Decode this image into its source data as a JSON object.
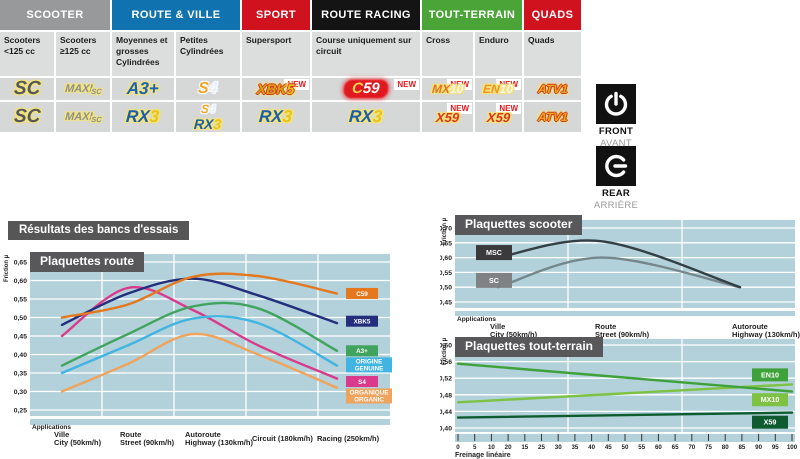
{
  "table": {
    "new_label": "NEW",
    "groups": [
      {
        "label": "SCOOTER",
        "color": "#98999b",
        "span": 2
      },
      {
        "label": "ROUTE & VILLE",
        "color": "#1172b0",
        "span": 2
      },
      {
        "label": "SPORT",
        "color": "#d0121f",
        "span": 1
      },
      {
        "label": "ROUTE RACING",
        "color": "#141414",
        "span": 1
      },
      {
        "label": "TOUT-TERRAIN",
        "color": "#4aa437",
        "span": 2
      },
      {
        "label": "QUADS",
        "color": "#d0121f",
        "span": 1
      }
    ],
    "columns": [
      "Scooters <125 cc",
      "Scooters ≥125 cc",
      "Moyennes et grosses Cylindrées",
      "Petites Cylindrées",
      "Supersport",
      "Course uniquement sur circuit",
      "Cross",
      "Enduro",
      "Quads"
    ],
    "rows": {
      "front": {
        "side_label": "FRONT",
        "side_sub": "AVANT",
        "cells": [
          {
            "badges": [
              {
                "style": "sc",
                "parts": [
                  [
                    "SC",
                    "#55585c"
                  ]
                ]
              }
            ]
          },
          {
            "badges": [
              {
                "style": "maxisc",
                "parts": [
                  [
                    "MAXI",
                    "#8d9092"
                  ],
                  [
                    "SC",
                    "#8d9092"
                  ]
                ]
              }
            ]
          },
          {
            "badges": [
              {
                "style": "a3",
                "parts": [
                  [
                    "A3+",
                    "#1b62b5"
                  ]
                ]
              }
            ]
          },
          {
            "badges": [
              {
                "style": "s4",
                "parts": [
                  [
                    "S",
                    "#f1a51f"
                  ],
                  [
                    "4",
                    "#e8f0f8"
                  ]
                ]
              }
            ]
          },
          {
            "new": true,
            "badges": [
              {
                "style": "xbk5",
                "parts": [
                  [
                    "XBK",
                    "#dd9f17"
                  ],
                  [
                    "5",
                    "#f0c51f"
                  ]
                ]
              }
            ]
          },
          {
            "new": true,
            "badges": [
              {
                "style": "c59",
                "parts": [
                  [
                    "C",
                    "#f6d34c"
                  ],
                  [
                    "59",
                    "#ffffff"
                  ]
                ]
              }
            ]
          },
          {
            "new": true,
            "badges": [
              {
                "style": "mx10",
                "parts": [
                  [
                    "MX",
                    "#e2711d"
                  ],
                  [
                    "10",
                    "#f6f6f6"
                  ]
                ]
              }
            ]
          },
          {
            "new": true,
            "badges": [
              {
                "style": "en10",
                "parts": [
                  [
                    "EN",
                    "#ef9223"
                  ],
                  [
                    "10",
                    "#f6f6f6"
                  ]
                ]
              }
            ]
          },
          {
            "badges": [
              {
                "style": "atv1",
                "parts": [
                  [
                    "ATV1",
                    "#f0a51e"
                  ]
                ]
              }
            ]
          }
        ]
      },
      "rear": {
        "side_label": "REAR",
        "side_sub": "ARRIÈRE",
        "cells": [
          {
            "badges": [
              {
                "style": "sc",
                "parts": [
                  [
                    "SC",
                    "#55585c"
                  ]
                ]
              }
            ]
          },
          {
            "badges": [
              {
                "style": "maxisc",
                "parts": [
                  [
                    "MAXI",
                    "#8d9092"
                  ],
                  [
                    "SC",
                    "#8d9092"
                  ]
                ]
              }
            ]
          },
          {
            "badges": [
              {
                "style": "rx3",
                "parts": [
                  [
                    "RX",
                    "#1a5dab"
                  ],
                  [
                    "3",
                    "#e6c31d"
                  ]
                ]
              }
            ]
          },
          {
            "badges": [
              {
                "style": "s4",
                "small": true,
                "parts": [
                  [
                    "S",
                    "#f1a51f"
                  ],
                  [
                    "4",
                    "#e8f0f8"
                  ]
                ]
              },
              {
                "style": "rx3",
                "small": true,
                "parts": [
                  [
                    "RX",
                    "#1a5dab"
                  ],
                  [
                    "3",
                    "#e6c31d"
                  ]
                ]
              }
            ]
          },
          {
            "badges": [
              {
                "style": "rx3",
                "parts": [
                  [
                    "RX",
                    "#1a5dab"
                  ],
                  [
                    "3",
                    "#e6c31d"
                  ]
                ]
              }
            ]
          },
          {
            "badges": [
              {
                "style": "rx3",
                "parts": [
                  [
                    "RX",
                    "#1a5dab"
                  ],
                  [
                    "3",
                    "#e6c31d"
                  ]
                ]
              }
            ]
          },
          {
            "new": true,
            "badges": [
              {
                "style": "x59",
                "parts": [
                  [
                    "X59",
                    "#dc3420"
                  ]
                ]
              }
            ]
          },
          {
            "new": true,
            "badges": [
              {
                "style": "x59",
                "parts": [
                  [
                    "X59",
                    "#dc3420"
                  ]
                ]
              }
            ]
          },
          {
            "badges": [
              {
                "style": "atv1",
                "parts": [
                  [
                    "ATV1",
                    "#f0a51e"
                  ]
                ]
              }
            ]
          }
        ]
      }
    }
  },
  "results_title": "Résultats des bancs d'essais",
  "colors": {
    "plot_bg": "#b2d1da",
    "grid": "#ffffff",
    "title_bar": "#58585a"
  },
  "chart_data": [
    {
      "id": "route",
      "type": "line",
      "title": "Plaquettes route",
      "ylabel": "Friction µ",
      "xlabel": "Applications",
      "ylim": [
        0.25,
        0.65
      ],
      "yticks": [
        0.65,
        0.6,
        0.55,
        0.5,
        0.45,
        0.4,
        0.35,
        0.3,
        0.25
      ],
      "categories": [
        {
          "l1": "Ville",
          "l2": "City (50km/h)"
        },
        {
          "l1": "Route",
          "l2": "Street (90km/h)"
        },
        {
          "l1": "Autoroute",
          "l2": "Highway (130km/h)"
        },
        {
          "l1": "Circuit (180km/h)"
        },
        {
          "l1": "Racing (250km/h)"
        }
      ],
      "series": [
        {
          "name": "C59",
          "color": "#e5771e",
          "values": [
            0.5,
            0.535,
            0.61,
            0.612,
            0.565
          ],
          "label_y": 0.565
        },
        {
          "name": "XBK5",
          "color": "#232e7d",
          "values": [
            0.48,
            0.565,
            0.605,
            0.56,
            0.485
          ],
          "label_y": 0.49
        },
        {
          "name": "A3+",
          "color": "#41a45e",
          "values": [
            0.37,
            0.455,
            0.53,
            0.525,
            0.41
          ],
          "label_y": 0.41
        },
        {
          "name": "ORIGINE\nGENUINE",
          "color": "#41b4e2",
          "values": [
            0.35,
            0.425,
            0.497,
            0.485,
            0.37
          ],
          "label_y": 0.372
        },
        {
          "name": "S4",
          "color": "#d93a8c",
          "values": [
            0.45,
            0.58,
            0.52,
            0.425,
            0.335
          ],
          "label_y": 0.327
        },
        {
          "name": "ORGANIQUE\nORGANIC",
          "color": "#f0a35c",
          "values": [
            0.3,
            0.375,
            0.455,
            0.4,
            0.31
          ],
          "label_y": 0.288
        }
      ]
    },
    {
      "id": "scooter",
      "type": "line",
      "title": "Plaquettes scooter",
      "ylabel": "Friction µ",
      "xlabel": "Applications",
      "ylim": [
        0.45,
        0.7
      ],
      "yticks": [
        0.7,
        0.65,
        0.6,
        0.55,
        0.5,
        0.45
      ],
      "categories": [
        {
          "l1": "Ville",
          "l2": "City (50km/h)"
        },
        {
          "l1": "Route",
          "l2": "Street (90km/h)"
        },
        {
          "l1": "Autoroute",
          "l2": "Highway (130km/h)"
        }
      ],
      "series": [
        {
          "name": "MSC",
          "color": "#333f44",
          "box": "#3a3a3c",
          "values": [
            0.6,
            0.655,
            0.5
          ],
          "label_y": 0.617
        },
        {
          "name": "SC",
          "color": "#75868c",
          "box": "#7f8284",
          "values": [
            0.5,
            0.6,
            0.5
          ],
          "label_y": 0.523
        }
      ]
    },
    {
      "id": "terrain",
      "type": "line",
      "title": "Plaquettes tout-terrain",
      "ylabel": "Friction µ",
      "xlabel": "Freinage linéaire",
      "ylim": [
        0.4,
        0.6
      ],
      "xlim": [
        0,
        100
      ],
      "yticks": [
        0.6,
        0.56,
        0.52,
        0.48,
        0.44,
        0.4
      ],
      "xticks": [
        "0",
        "5",
        "10",
        "20",
        "15",
        "25",
        "30",
        "35",
        "40",
        "45",
        "50",
        "55",
        "60",
        "65",
        "70",
        "75",
        "80",
        "85",
        "90",
        "95",
        "100"
      ],
      "series": [
        {
          "name": "EN10",
          "color": "#3fa13a",
          "box": "#3fa13a",
          "x": [
            0,
            100
          ],
          "values": [
            0.555,
            0.488
          ],
          "label_y": 0.528
        },
        {
          "name": "MX10",
          "color": "#7dc242",
          "box": "#7dc242",
          "x": [
            0,
            100
          ],
          "values": [
            0.462,
            0.505
          ],
          "label_y": 0.468
        },
        {
          "name": "X59",
          "color": "#0e5b2f",
          "box": "#0e5b2f",
          "x": [
            0,
            100
          ],
          "values": [
            0.425,
            0.437
          ],
          "label_y": 0.414
        }
      ]
    }
  ]
}
